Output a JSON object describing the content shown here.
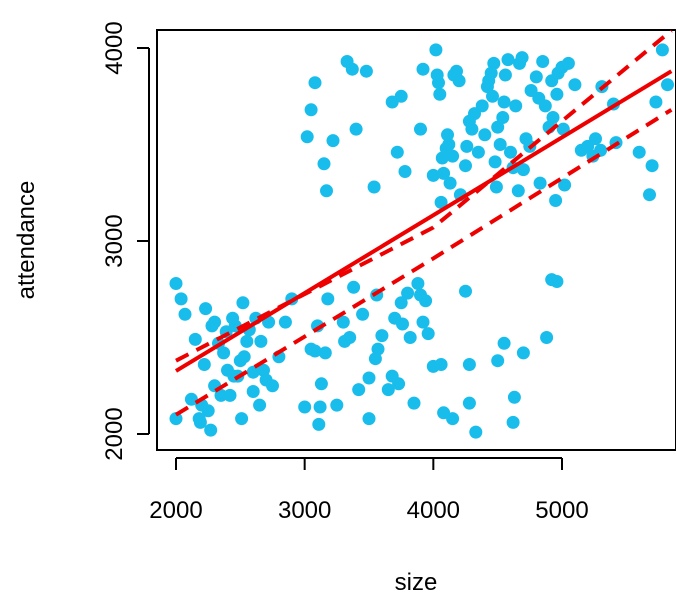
{
  "chart_data": {
    "type": "scatter",
    "xlabel": "size",
    "ylabel": "attendance",
    "xlim": [
      1850,
      5850
    ],
    "ylim": [
      1950,
      4050
    ],
    "x_ticks": [
      2000,
      3000,
      4000,
      5000
    ],
    "y_ticks": [
      2000,
      3000,
      4000
    ],
    "x_tick_labels": [
      "2000",
      "3000",
      "4000",
      "5000"
    ],
    "y_tick_labels": [
      "2000",
      "3000",
      "4000"
    ],
    "grid": false,
    "legend": "none",
    "colors": {
      "points": "#18BDEB",
      "fit": "#EE0000",
      "axes": "#000000"
    },
    "points": [
      [
        2000,
        2780
      ],
      [
        2040,
        2700
      ],
      [
        2070,
        2620
      ],
      [
        2000,
        2080
      ],
      [
        2120,
        2180
      ],
      [
        2150,
        2490
      ],
      [
        2180,
        2080
      ],
      [
        2190,
        2060
      ],
      [
        2200,
        2150
      ],
      [
        2220,
        2360
      ],
      [
        2230,
        2650
      ],
      [
        2250,
        2120
      ],
      [
        2280,
        2560
      ],
      [
        2300,
        2250
      ],
      [
        2330,
        2470
      ],
      [
        2370,
        2420
      ],
      [
        2390,
        2530
      ],
      [
        2400,
        2330
      ],
      [
        2420,
        2200
      ],
      [
        2440,
        2600
      ],
      [
        2460,
        2560
      ],
      [
        2480,
        2300
      ],
      [
        2500,
        2380
      ],
      [
        2510,
        2080
      ],
      [
        2520,
        2680
      ],
      [
        2530,
        2400
      ],
      [
        2550,
        2480
      ],
      [
        2570,
        2540
      ],
      [
        2600,
        2220
      ],
      [
        2620,
        2600
      ],
      [
        2650,
        2150
      ],
      [
        2660,
        2480
      ],
      [
        2680,
        2330
      ],
      [
        2700,
        2280
      ],
      [
        2720,
        2580
      ],
      [
        2750,
        2250
      ],
      [
        2800,
        2400
      ],
      [
        2850,
        2580
      ],
      [
        2900,
        2700
      ],
      [
        2270,
        2020
      ],
      [
        2300,
        2580
      ],
      [
        2350,
        2200
      ],
      [
        2450,
        2300
      ],
      [
        2600,
        2320
      ],
      [
        3000,
        2140
      ],
      [
        3050,
        2440
      ],
      [
        3080,
        2430
      ],
      [
        3100,
        2560
      ],
      [
        3110,
        2050
      ],
      [
        3120,
        2140
      ],
      [
        3130,
        2260
      ],
      [
        3160,
        2420
      ],
      [
        3180,
        2700
      ],
      [
        3250,
        2150
      ],
      [
        3300,
        2580
      ],
      [
        3310,
        2480
      ],
      [
        3350,
        2500
      ],
      [
        3380,
        2760
      ],
      [
        3420,
        2230
      ],
      [
        3450,
        2620
      ],
      [
        3500,
        2080
      ],
      [
        3500,
        2290
      ],
      [
        3550,
        2390
      ],
      [
        3570,
        2440
      ],
      [
        3560,
        2720
      ],
      [
        3600,
        2510
      ],
      [
        3650,
        2230
      ],
      [
        3680,
        2300
      ],
      [
        3700,
        2600
      ],
      [
        3730,
        2260
      ],
      [
        3750,
        2680
      ],
      [
        3760,
        2570
      ],
      [
        3800,
        2730
      ],
      [
        3820,
        2500
      ],
      [
        3850,
        2160
      ],
      [
        3880,
        2780
      ],
      [
        3900,
        2720
      ],
      [
        3920,
        2580
      ],
      [
        3940,
        2690
      ],
      [
        3960,
        2520
      ],
      [
        4000,
        2350
      ],
      [
        4060,
        2360
      ],
      [
        4080,
        2110
      ],
      [
        4150,
        2080
      ],
      [
        4250,
        2740
      ],
      [
        4280,
        2160
      ],
      [
        4280,
        2360
      ],
      [
        4330,
        2010
      ],
      [
        4500,
        2380
      ],
      [
        4550,
        2470
      ],
      [
        4620,
        2060
      ],
      [
        4630,
        2190
      ],
      [
        4700,
        2420
      ],
      [
        4880,
        2500
      ],
      [
        4920,
        2800
      ],
      [
        4960,
        2790
      ],
      [
        3020,
        3540
      ],
      [
        3050,
        3680
      ],
      [
        3080,
        3820
      ],
      [
        3150,
        3400
      ],
      [
        3170,
        3260
      ],
      [
        3220,
        3520
      ],
      [
        3330,
        3930
      ],
      [
        3370,
        3890
      ],
      [
        3400,
        3580
      ],
      [
        3480,
        3880
      ],
      [
        3540,
        3280
      ],
      [
        3680,
        3720
      ],
      [
        3720,
        3460
      ],
      [
        3750,
        3750
      ],
      [
        3780,
        3360
      ],
      [
        3920,
        3890
      ],
      [
        3900,
        3580
      ],
      [
        4000,
        3340
      ],
      [
        4020,
        3990
      ],
      [
        4030,
        3860
      ],
      [
        4040,
        3820
      ],
      [
        4050,
        3760
      ],
      [
        4060,
        3200
      ],
      [
        4070,
        3430
      ],
      [
        4080,
        3350
      ],
      [
        4100,
        3480
      ],
      [
        4110,
        3550
      ],
      [
        4120,
        3500
      ],
      [
        4130,
        3300
      ],
      [
        4150,
        3440
      ],
      [
        4160,
        3860
      ],
      [
        4180,
        3880
      ],
      [
        4200,
        3830
      ],
      [
        4210,
        3240
      ],
      [
        4250,
        3390
      ],
      [
        4260,
        3490
      ],
      [
        4280,
        3620
      ],
      [
        4300,
        3580
      ],
      [
        4320,
        3660
      ],
      [
        4350,
        3460
      ],
      [
        4380,
        3700
      ],
      [
        4400,
        3550
      ],
      [
        4420,
        3800
      ],
      [
        4430,
        3830
      ],
      [
        4450,
        3870
      ],
      [
        4460,
        3750
      ],
      [
        4470,
        3920
      ],
      [
        4480,
        3410
      ],
      [
        4490,
        3280
      ],
      [
        4500,
        3590
      ],
      [
        4520,
        3500
      ],
      [
        4540,
        3640
      ],
      [
        4550,
        3720
      ],
      [
        4560,
        3860
      ],
      [
        4580,
        3940
      ],
      [
        4600,
        3460
      ],
      [
        4620,
        3380
      ],
      [
        4640,
        3700
      ],
      [
        4660,
        3260
      ],
      [
        4670,
        3920
      ],
      [
        4690,
        3950
      ],
      [
        4700,
        3370
      ],
      [
        4720,
        3530
      ],
      [
        4750,
        3490
      ],
      [
        4760,
        3780
      ],
      [
        4800,
        3850
      ],
      [
        4820,
        3740
      ],
      [
        4830,
        3300
      ],
      [
        4850,
        3930
      ],
      [
        4870,
        3700
      ],
      [
        4900,
        3590
      ],
      [
        4920,
        3830
      ],
      [
        4930,
        3640
      ],
      [
        4950,
        3210
      ],
      [
        4960,
        3760
      ],
      [
        4970,
        3870
      ],
      [
        5000,
        3900
      ],
      [
        5010,
        3580
      ],
      [
        5020,
        3290
      ],
      [
        5050,
        3920
      ],
      [
        5100,
        3810
      ],
      [
        5150,
        3470
      ],
      [
        5200,
        3490
      ],
      [
        5240,
        3440
      ],
      [
        5260,
        3530
      ],
      [
        5300,
        3470
      ],
      [
        5310,
        3800
      ],
      [
        5400,
        3710
      ],
      [
        5420,
        3510
      ],
      [
        5600,
        3460
      ],
      [
        5680,
        3240
      ],
      [
        5700,
        3390
      ],
      [
        5730,
        3720
      ],
      [
        5780,
        3990
      ],
      [
        5820,
        3810
      ]
    ],
    "fit": {
      "intercept": 1520,
      "slope": 0.4034
    },
    "ci_band": {
      "x": [
        2000,
        4000,
        5850
      ],
      "lower": [
        2100,
        2910,
        3680
      ],
      "upper": [
        2380,
        3070,
        4090
      ]
    }
  }
}
